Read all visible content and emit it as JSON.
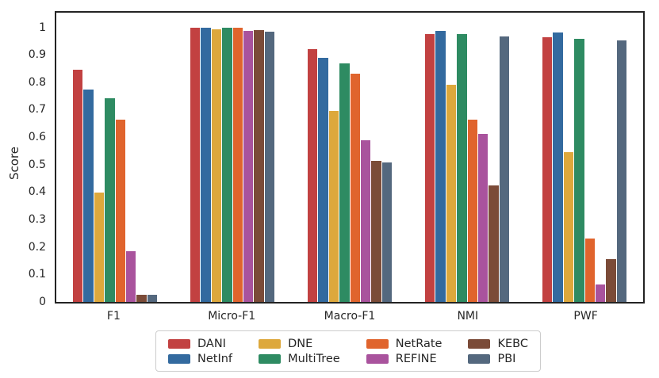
{
  "figure": {
    "ylabel": "Score"
  },
  "chart_data": {
    "type": "bar",
    "title": "",
    "xlabel": "",
    "ylabel": "Score",
    "categories": [
      "F1",
      "Micro-F1",
      "Macro-F1",
      "NMI",
      "PWF"
    ],
    "series": [
      {
        "name": "DANI",
        "color": "#c24141",
        "values": [
          0.845,
          1.0,
          0.92,
          0.975,
          0.963
        ]
      },
      {
        "name": "NetInf",
        "color": "#336a9f",
        "values": [
          0.775,
          1.0,
          0.888,
          0.988,
          0.98
        ]
      },
      {
        "name": "DNE",
        "color": "#dda83c",
        "values": [
          0.397,
          0.992,
          0.696,
          0.79,
          0.545
        ]
      },
      {
        "name": "MultiTree",
        "color": "#2e8b62",
        "values": [
          0.743,
          1.0,
          0.87,
          0.975,
          0.957
        ]
      },
      {
        "name": "NetRate",
        "color": "#e0642d",
        "values": [
          0.665,
          0.998,
          0.832,
          0.665,
          0.23
        ]
      },
      {
        "name": "REFINE",
        "color": "#a9539d",
        "values": [
          0.185,
          0.987,
          0.59,
          0.612,
          0.063
        ]
      },
      {
        "name": "KEBC",
        "color": "#7b4b38",
        "values": [
          0.027,
          0.99,
          0.513,
          0.425,
          0.157
        ]
      },
      {
        "name": "PBI",
        "color": "#54687e",
        "values": [
          0.025,
          0.985,
          0.509,
          0.968,
          0.952
        ]
      }
    ],
    "ytick_labels": [
      "0",
      "0.1",
      "0.2",
      "0.3",
      "0.4",
      "0.5",
      "0.6",
      "0.7",
      "0.8",
      "0.9",
      "1"
    ],
    "ylim": [
      0,
      1.065
    ],
    "grid": false,
    "legend_position": "bottom-center",
    "legend_columns": 4,
    "legend_rows": 2
  }
}
